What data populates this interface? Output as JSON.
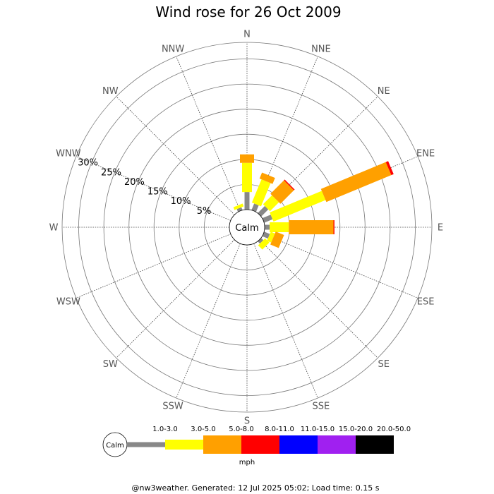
{
  "chart_data": {
    "type": "windrose",
    "title": "Wind rose for 26 Oct 2009",
    "center_label": "Calm",
    "unit_label": "mph",
    "rings_percent": [
      5,
      10,
      15,
      20,
      25,
      30
    ],
    "ring_labels": [
      "5%",
      "10%",
      "15%",
      "20%",
      "25%",
      "30%"
    ],
    "rmax_percent": 33.3,
    "directions": [
      "N",
      "NNE",
      "NE",
      "ENE",
      "E",
      "ESE",
      "SE",
      "SSE",
      "S",
      "SSW",
      "SW",
      "WSW",
      "W",
      "WNW",
      "NW",
      "NNW"
    ],
    "speed_bins": [
      {
        "label": "1.0-3.0",
        "color": "#888888"
      },
      {
        "label": "3.0-5.0",
        "color": "#ffff00"
      },
      {
        "label": "5.0-8.0",
        "color": "#ffa000"
      },
      {
        "label": "8.0-11.0",
        "color": "#ff0000"
      },
      {
        "label": "11.0-15.0",
        "color": "#0000ff"
      },
      {
        "label": "15.0-20.0",
        "color": "#a020f0"
      },
      {
        "label": "20.0-50.0",
        "color": "#000000"
      }
    ],
    "segments_percent": {
      "N": [
        3.5,
        5.8,
        1.7,
        0,
        0,
        0,
        0
      ],
      "NNE": [
        1.4,
        5.0,
        1.3,
        0,
        0,
        0,
        0
      ],
      "NE": [
        2.0,
        2.5,
        3.8,
        0.2,
        0,
        0,
        0
      ],
      "ENE": [
        1.8,
        11.2,
        14.0,
        0.5,
        0,
        0,
        0
      ],
      "E": [
        1.0,
        3.8,
        8.9,
        0.2,
        0,
        0,
        0
      ],
      "ESE": [
        1.2,
        0.9,
        1.8,
        0,
        0,
        0,
        0
      ],
      "SE": [
        0.6,
        1.2,
        0,
        0,
        0,
        0,
        0
      ],
      "SSE": [
        0,
        0,
        0,
        0,
        0,
        0,
        0
      ],
      "S": [
        0,
        0,
        0,
        0,
        0,
        0,
        0
      ],
      "SSW": [
        0,
        0,
        0,
        0,
        0,
        0,
        0
      ],
      "SW": [
        0,
        0,
        0,
        0,
        0,
        0,
        0
      ],
      "WSW": [
        0,
        0,
        0,
        0,
        0,
        0,
        0
      ],
      "W": [
        0,
        0,
        0,
        0,
        0,
        0,
        0
      ],
      "WNW": [
        0,
        0,
        0,
        0,
        0,
        0,
        0
      ],
      "NW": [
        0,
        0,
        0,
        0,
        0,
        0,
        0
      ],
      "NNW": [
        0.6,
        0.6,
        0,
        0,
        0,
        0,
        0
      ]
    },
    "grid": true,
    "legend_position": "bottom"
  },
  "footer": "@nw3weather. Generated: 12 Jul 2025 05:02; Load time: 0.15 s"
}
